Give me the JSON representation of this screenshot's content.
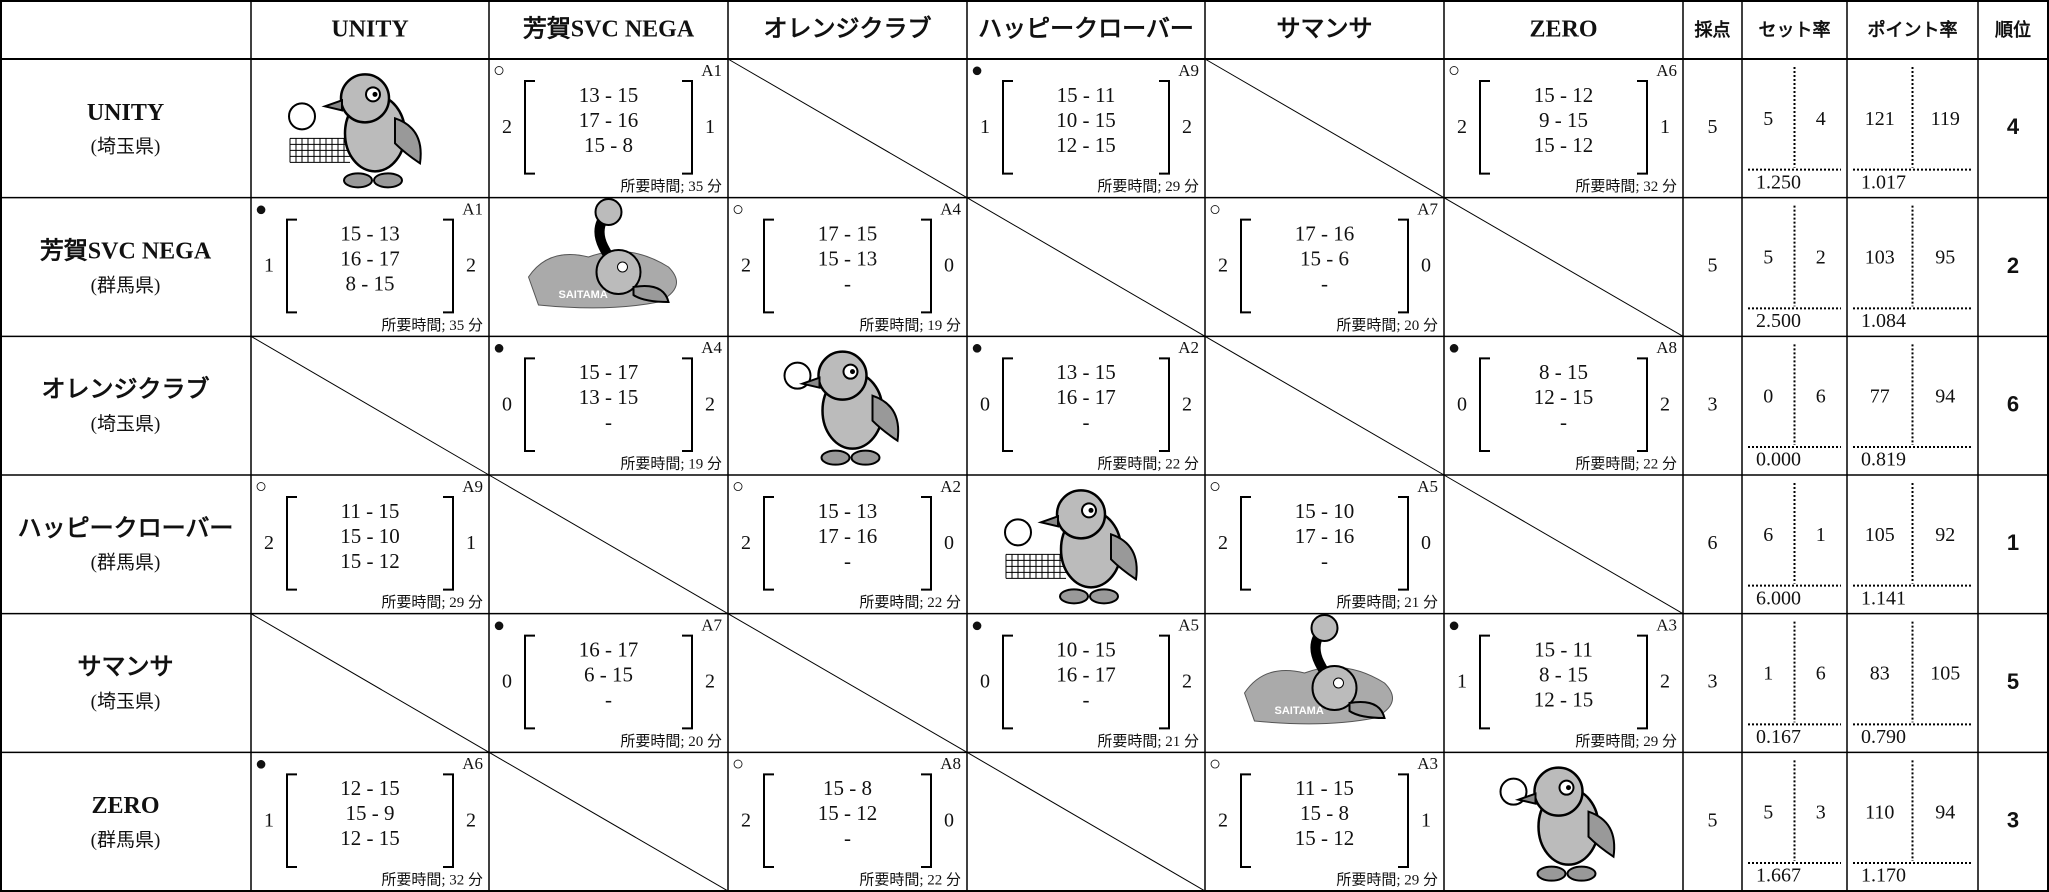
{
  "header": {
    "rate_score": "採点",
    "set_rate": "セット率",
    "point_rate": "ポイント率",
    "rank": "順位"
  },
  "mascot_label": "SAITAMA",
  "teams": [
    {
      "name": "UNITY",
      "pref": "(埼玉県)",
      "matches": [
        null,
        {
          "mark": "○",
          "id": "A1",
          "left": "2",
          "sets": [
            "13 - 15",
            "17 - 16",
            "15 - 8"
          ],
          "right": "1",
          "time": "所要時間; 35 分"
        },
        null,
        {
          "mark": "●",
          "id": "A9",
          "left": "1",
          "sets": [
            "15 - 11",
            "10 - 15",
            "12 - 15"
          ],
          "right": "2",
          "time": "所要時間; 29 分"
        },
        null,
        {
          "mark": "○",
          "id": "A6",
          "left": "2",
          "sets": [
            "15 - 12",
            "9 - 15",
            "15 - 12"
          ],
          "right": "1",
          "time": "所要時間; 32 分"
        }
      ],
      "score": "5",
      "sets_won": "5",
      "sets_lost": "4",
      "set_ratio": "1.250",
      "points_for": "121",
      "points_against": "119",
      "point_ratio": "1.017",
      "rank": "4"
    },
    {
      "name": "芳賀SVC NEGA",
      "pref": "(群馬県)",
      "matches": [
        {
          "mark": "●",
          "id": "A1",
          "left": "1",
          "sets": [
            "15 - 13",
            "16 - 17",
            "8 - 15"
          ],
          "right": "2",
          "time": "所要時間; 35 分"
        },
        null,
        {
          "mark": "○",
          "id": "A4",
          "left": "2",
          "sets": [
            "17 - 15",
            "15 - 13",
            "-"
          ],
          "right": "0",
          "time": "所要時間; 19 分"
        },
        null,
        {
          "mark": "○",
          "id": "A7",
          "left": "2",
          "sets": [
            "17 - 16",
            "15 - 6",
            "-"
          ],
          "right": "0",
          "time": "所要時間; 20 分"
        },
        null
      ],
      "score": "5",
      "sets_won": "5",
      "sets_lost": "2",
      "set_ratio": "2.500",
      "points_for": "103",
      "points_against": "95",
      "point_ratio": "1.084",
      "rank": "2"
    },
    {
      "name": "オレンジクラブ",
      "pref": "(埼玉県)",
      "matches": [
        null,
        {
          "mark": "●",
          "id": "A4",
          "left": "0",
          "sets": [
            "15 - 17",
            "13 - 15",
            "-"
          ],
          "right": "2",
          "time": "所要時間; 19 分"
        },
        null,
        {
          "mark": "●",
          "id": "A2",
          "left": "0",
          "sets": [
            "13 - 15",
            "16 - 17",
            "-"
          ],
          "right": "2",
          "time": "所要時間; 22 分"
        },
        null,
        {
          "mark": "●",
          "id": "A8",
          "left": "0",
          "sets": [
            "8 - 15",
            "12 - 15",
            "-"
          ],
          "right": "2",
          "time": "所要時間; 22 分"
        }
      ],
      "score": "3",
      "sets_won": "0",
      "sets_lost": "6",
      "set_ratio": "0.000",
      "points_for": "77",
      "points_against": "94",
      "point_ratio": "0.819",
      "rank": "6"
    },
    {
      "name": "ハッピークローバー",
      "pref": "(群馬県)",
      "matches": [
        {
          "mark": "○",
          "id": "A9",
          "left": "2",
          "sets": [
            "11 - 15",
            "15 - 10",
            "15 - 12"
          ],
          "right": "1",
          "time": "所要時間; 29 分"
        },
        null,
        {
          "mark": "○",
          "id": "A2",
          "left": "2",
          "sets": [
            "15 - 13",
            "17 - 16",
            "-"
          ],
          "right": "0",
          "time": "所要時間; 22 分"
        },
        null,
        {
          "mark": "○",
          "id": "A5",
          "left": "2",
          "sets": [
            "15 - 10",
            "17 - 16",
            "-"
          ],
          "right": "0",
          "time": "所要時間; 21 分"
        },
        null
      ],
      "score": "6",
      "sets_won": "6",
      "sets_lost": "1",
      "set_ratio": "6.000",
      "points_for": "105",
      "points_against": "92",
      "point_ratio": "1.141",
      "rank": "1"
    },
    {
      "name": "サマンサ",
      "pref": "(埼玉県)",
      "matches": [
        null,
        {
          "mark": "●",
          "id": "A7",
          "left": "0",
          "sets": [
            "16 - 17",
            "6 - 15",
            "-"
          ],
          "right": "2",
          "time": "所要時間; 20 分"
        },
        null,
        {
          "mark": "●",
          "id": "A5",
          "left": "0",
          "sets": [
            "10 - 15",
            "16 - 17",
            "-"
          ],
          "right": "2",
          "time": "所要時間; 21 分"
        },
        null,
        {
          "mark": "●",
          "id": "A3",
          "left": "1",
          "sets": [
            "15 - 11",
            "8 - 15",
            "12 - 15"
          ],
          "right": "2",
          "time": "所要時間; 29 分"
        }
      ],
      "score": "3",
      "sets_won": "1",
      "sets_lost": "6",
      "set_ratio": "0.167",
      "points_for": "83",
      "points_against": "105",
      "point_ratio": "0.790",
      "rank": "5"
    },
    {
      "name": "ZERO",
      "pref": "(群馬県)",
      "matches": [
        {
          "mark": "●",
          "id": "A6",
          "left": "1",
          "sets": [
            "12 - 15",
            "15 - 9",
            "12 - 15"
          ],
          "right": "2",
          "time": "所要時間; 32 分"
        },
        null,
        {
          "mark": "○",
          "id": "A8",
          "left": "2",
          "sets": [
            "15 - 8",
            "15 - 12",
            "-"
          ],
          "right": "0",
          "time": "所要時間; 22 分"
        },
        null,
        {
          "mark": "○",
          "id": "A3",
          "left": "2",
          "sets": [
            "11 - 15",
            "15 - 8",
            "15 - 12"
          ],
          "right": "1",
          "time": "所要時間; 29 分"
        },
        null
      ],
      "score": "5",
      "sets_won": "5",
      "sets_lost": "3",
      "set_ratio": "1.667",
      "points_for": "110",
      "points_against": "94",
      "point_ratio": "1.170",
      "rank": "3"
    }
  ]
}
